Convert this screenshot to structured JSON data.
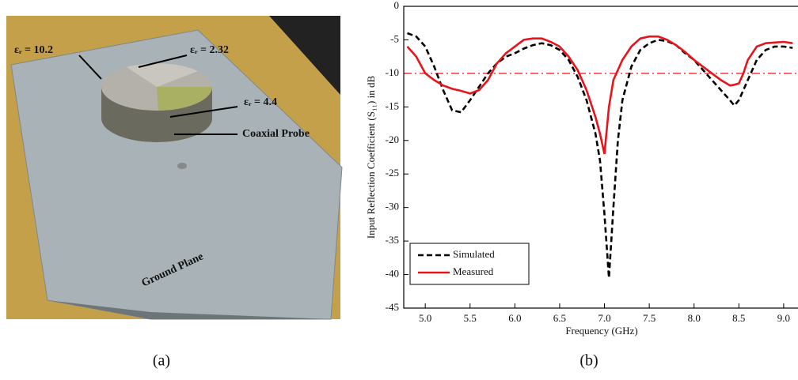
{
  "photo": {
    "labels": [
      "εᵣ = 10.2",
      "εᵣ = 2.32",
      "εᵣ = 4.4",
      "Coaxial Probe",
      "Ground Plane"
    ],
    "caption": "(a)"
  },
  "chart_data": {
    "type": "line",
    "caption": "(b)",
    "x_label": "Frequency (GHz)",
    "y_label": "Input Reflection Coefficient (S₁₁) in dB",
    "x": [
      4.8,
      4.9,
      5.0,
      5.1,
      5.2,
      5.3,
      5.4,
      5.5,
      5.6,
      5.7,
      5.8,
      5.9,
      6.0,
      6.1,
      6.2,
      6.3,
      6.4,
      6.5,
      6.6,
      6.7,
      6.8,
      6.9,
      6.95,
      7.0,
      7.05,
      7.1,
      7.15,
      7.2,
      7.3,
      7.4,
      7.5,
      7.6,
      7.7,
      7.8,
      7.9,
      8.0,
      8.1,
      8.2,
      8.3,
      8.4,
      8.45,
      8.5,
      8.55,
      8.6,
      8.7,
      8.8,
      8.9,
      9.0,
      9.1
    ],
    "series": [
      {
        "name": "Simulated",
        "color": "#000000",
        "dash": true,
        "values": [
          -4,
          -4.5,
          -6,
          -9,
          -12.5,
          -15.5,
          -15.8,
          -14,
          -12,
          -10,
          -8.5,
          -7.5,
          -7,
          -6.3,
          -5.8,
          -5.5,
          -5.8,
          -6.5,
          -8,
          -10.5,
          -14,
          -19,
          -23,
          -31,
          -40.5,
          -30,
          -20,
          -14,
          -9,
          -6.5,
          -5.5,
          -5,
          -5.2,
          -5.8,
          -7,
          -8,
          -9.5,
          -11,
          -12.5,
          -14,
          -14.8,
          -14,
          -12.5,
          -11,
          -8,
          -6.5,
          -6,
          -6,
          -6.2
        ]
      },
      {
        "name": "Measured",
        "color": "#e8141b",
        "dash": false,
        "values": [
          -6,
          -7.5,
          -10,
          -11,
          -11.8,
          -12.3,
          -12.6,
          -13,
          -12.5,
          -11,
          -8.5,
          -7,
          -6,
          -5,
          -4.8,
          -4.8,
          -5.3,
          -6,
          -7.5,
          -9.5,
          -12.5,
          -16.5,
          -19,
          -22,
          -15,
          -11,
          -9.5,
          -8,
          -6,
          -4.8,
          -4.5,
          -4.5,
          -5,
          -5.8,
          -6.8,
          -8,
          -9,
          -10,
          -11,
          -11.8,
          -11.7,
          -11.5,
          -10,
          -8,
          -6,
          -5.5,
          -5.4,
          -5.3,
          -5.5
        ]
      }
    ],
    "ref_line": -10,
    "ref_color": "#e8141b",
    "xlim": [
      4.76,
      9.16
    ],
    "ylim": [
      -45,
      0
    ],
    "xticks": [
      {
        "value": 5,
        "label": "5.0"
      },
      {
        "value": 5.5,
        "label": "5.5"
      },
      {
        "value": 6,
        "label": "6.0"
      },
      {
        "value": 6.5,
        "label": "6.5"
      },
      {
        "value": 7,
        "label": "7.0"
      },
      {
        "value": 7.5,
        "label": "7.5"
      },
      {
        "value": 8,
        "label": "8.0"
      },
      {
        "value": 8.5,
        "label": "8.5"
      },
      {
        "value": 9,
        "label": "9.0"
      }
    ],
    "yticks": [
      0,
      -5,
      -10,
      -15,
      -20,
      -25,
      -30,
      -35,
      -40,
      -45
    ],
    "legend": "lower left"
  }
}
